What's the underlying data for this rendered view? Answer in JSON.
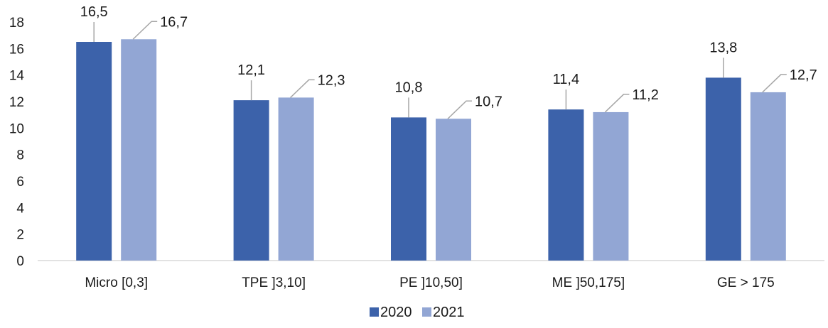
{
  "chart_data": {
    "type": "bar",
    "categories": [
      "Micro [0,3]",
      "TPE ]3,10]",
      "PE ]10,50]",
      "ME ]50,175]",
      "GE > 175"
    ],
    "series": [
      {
        "name": "2020",
        "values": [
          16.5,
          12.1,
          10.8,
          11.4,
          13.8
        ],
        "labels": [
          "16,5",
          "12,1",
          "10,8",
          "11,4",
          "13,8"
        ],
        "color": "#3c62aa"
      },
      {
        "name": "2021",
        "values": [
          16.7,
          12.3,
          10.7,
          11.2,
          12.7
        ],
        "labels": [
          "16,7",
          "12,3",
          "10,7",
          "11,2",
          "12,7"
        ],
        "color": "#92a6d4"
      }
    ],
    "ylim": [
      0,
      18
    ],
    "yticks": [
      "0",
      "2",
      "4",
      "6",
      "8",
      "10",
      "12",
      "14",
      "16",
      "18"
    ],
    "grid": false,
    "legend": "bottom-center",
    "xlabel": "",
    "ylabel": "",
    "title": ""
  }
}
